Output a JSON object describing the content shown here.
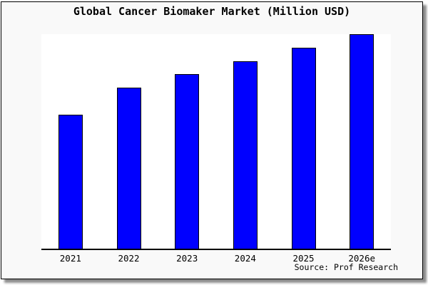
{
  "figure": {
    "background": "#f9f9f9",
    "border_color": "#000000",
    "shadow_color": "#999999"
  },
  "chart_data": {
    "type": "bar",
    "title": "Global Cancer Biomaker Market (Million USD)",
    "categories": [
      "2021",
      "2022",
      "2023",
      "2024",
      "2025",
      "2026e"
    ],
    "values": [
      100,
      120,
      130,
      140,
      150,
      160
    ],
    "xlabel": "",
    "ylabel": "",
    "ylim": [
      0,
      160
    ],
    "grid": false,
    "legend": false,
    "y_axis_visible": false,
    "x_axis_visible": true,
    "plot_background": "#ffffff",
    "bar_fill": "#0000ff",
    "bar_edge": "#000000",
    "source_note": "Source: Prof Research"
  }
}
